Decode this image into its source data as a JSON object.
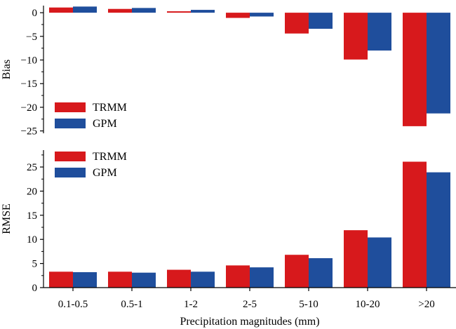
{
  "chart_data": [
    {
      "type": "bar",
      "categories": [
        "0.1-0.5",
        "0.5-1",
        "1-2",
        "2-5",
        "5-10",
        "10-20",
        ">20"
      ],
      "series": [
        {
          "name": "TRMM",
          "values": [
            1.1,
            0.8,
            0.3,
            -1.1,
            -4.4,
            -9.9,
            -24.0
          ],
          "color": "#d7191c"
        },
        {
          "name": "GPM",
          "values": [
            1.3,
            1.0,
            0.6,
            -0.8,
            -3.4,
            -8.0,
            -21.3
          ],
          "color": "#1f4e9c"
        }
      ],
      "ylabel": "Bias",
      "xlabel": "",
      "ylim": [
        -25.5,
        1.5
      ],
      "yticks": [
        0,
        -5,
        -10,
        -15,
        -20,
        -25
      ],
      "ytick_labels": [
        "0",
        "−5",
        "−10",
        "−15",
        "−20",
        "−25"
      ],
      "legend_placement": "left",
      "grid": false
    },
    {
      "type": "bar",
      "categories": [
        "0.1-0.5",
        "0.5-1",
        "1-2",
        "2-5",
        "5-10",
        "10-20",
        ">20"
      ],
      "series": [
        {
          "name": "TRMM",
          "values": [
            3.3,
            3.3,
            3.7,
            4.6,
            6.8,
            11.9,
            26.1
          ],
          "color": "#d7191c"
        },
        {
          "name": "GPM",
          "values": [
            3.2,
            3.1,
            3.3,
            4.2,
            6.1,
            10.4,
            23.9
          ],
          "color": "#1f4e9c"
        }
      ],
      "ylabel": "RMSE",
      "xlabel": "Precipitation magnitudes (mm)",
      "ylim": [
        0,
        28.5
      ],
      "yticks": [
        0,
        5,
        10,
        15,
        20,
        25
      ],
      "ytick_labels": [
        "0",
        "5",
        "10",
        "15",
        "20",
        "25"
      ],
      "legend_placement": "top-left",
      "grid": false
    }
  ]
}
